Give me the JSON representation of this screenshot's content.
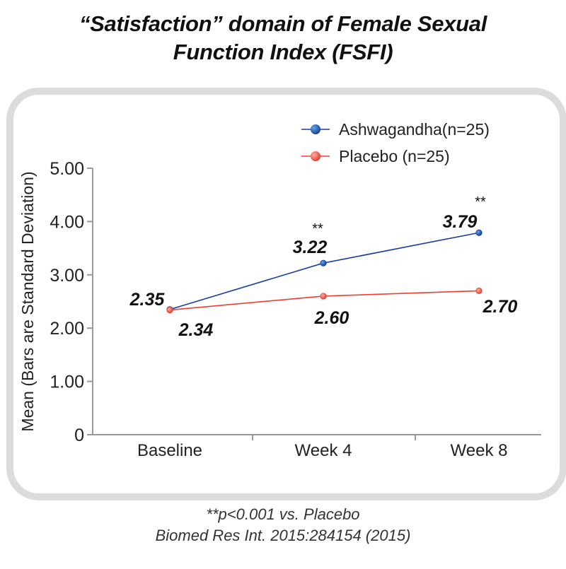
{
  "title": {
    "line1": "“Satisfaction” domain of Female Sexual",
    "line2": "Function Index (FSFI)"
  },
  "footnote": {
    "significance": "**p<0.001 vs. Placebo",
    "citation": "Biomed Res Int. 2015:284154 (2015)"
  },
  "colors": {
    "ashwagandha": "#1a3f9e",
    "placebo": "#ef3e32",
    "axis": "#9a9a9a",
    "panel_border": "#dcdcdc"
  },
  "chart_data": {
    "type": "line",
    "title": "“Satisfaction” domain of Female Sexual Function Index (FSFI)",
    "xlabel": "",
    "ylabel": "Mean (Bars are Standard Deviation)",
    "categories": [
      "Baseline",
      "Week 4",
      "Week 8"
    ],
    "ylim": [
      0,
      5
    ],
    "yticks": [
      0,
      1,
      2,
      3,
      4,
      5
    ],
    "ytick_labels": [
      "0",
      "1.00",
      "2.00",
      "3.00",
      "4.00",
      "5.00"
    ],
    "grid": false,
    "legend_position": "top-right",
    "series": [
      {
        "name": "Ashwagandha(n=25)",
        "color": "#1a3f9e",
        "values": [
          2.35,
          3.22,
          3.79
        ],
        "data_labels": [
          "2.35",
          "3.22",
          "3.79"
        ],
        "significance": [
          "",
          "**",
          "**"
        ]
      },
      {
        "name": "Placebo (n=25)",
        "color": "#ef3e32",
        "values": [
          2.34,
          2.6,
          2.7
        ],
        "data_labels": [
          "2.34",
          "2.60",
          "2.70"
        ],
        "significance": [
          "",
          "",
          ""
        ]
      }
    ]
  }
}
